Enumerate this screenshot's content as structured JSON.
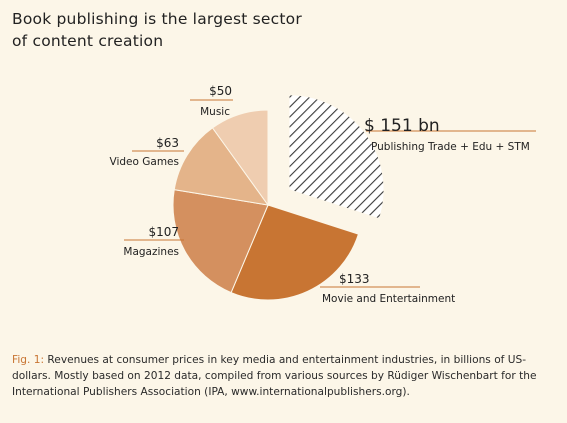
{
  "title": {
    "line1": "Book publishing is the largest sector",
    "line2": "of content creation"
  },
  "colors": {
    "background": "#fcf6e8",
    "accent": "#c87533",
    "label_line": "#c87533"
  },
  "chart_data": {
    "type": "pie",
    "categories": [
      "Publishing Trade + Edu + STM",
      "Movie and Entertainment",
      "Magazines",
      "Video Games",
      "Music"
    ],
    "values": [
      151,
      133,
      107,
      63,
      50
    ],
    "value_labels": [
      "$ 151 bn",
      "$133",
      "$107",
      "$63",
      "$50"
    ],
    "slice_colors": [
      "#ffffff",
      "#c87533",
      "#d4905f",
      "#e4b48a",
      "#efcdb0"
    ],
    "exploded": [
      "Publishing Trade + Edu + STM"
    ],
    "hatched": [
      "Publishing Trade + Edu + STM"
    ]
  },
  "caption": {
    "fig_label": "Fig. 1:",
    "text": " Revenues at consumer prices in key media and entertainment industries, in billions of US-dollars. Mostly based on 2012 data, compiled from various sources by Rüdiger Wischenbart for the International Publishers Association (IPA, www.internationalpublishers.org)."
  }
}
